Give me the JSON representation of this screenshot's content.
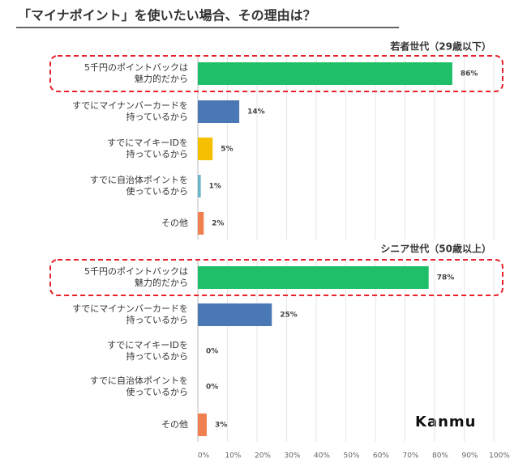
{
  "title": "「マイナポイント」を使いたい場合、その理由は？",
  "logo": "Kanmu",
  "chart_data": [
    {
      "type": "bar",
      "title": "若者世代（29歳以下）",
      "categories": [
        "5千円のポイントバックは\n魅力的だから",
        "すでにマイナンバーカードを\n持っているから",
        "すでにマイキーIDを\n持っているから",
        "すでに自治体ポイントを\n使っているから",
        "その他"
      ],
      "values": [
        86,
        14,
        5,
        1,
        2
      ],
      "value_labels": [
        "86%",
        "14%",
        "5%",
        "1%",
        "2%"
      ],
      "colors": [
        "#1fbf6a",
        "#4a78b5",
        "#f5c000",
        "#6ab5c8",
        "#f08050"
      ],
      "highlight_index": 0,
      "xlim": [
        0,
        100
      ],
      "xticks": [
        {
          "value": 0,
          "label": "0%"
        },
        {
          "value": 10,
          "label": "10%"
        },
        {
          "value": 20,
          "label": "20%"
        },
        {
          "value": 30,
          "label": "30%"
        },
        {
          "value": 40,
          "label": "40%"
        },
        {
          "value": 50,
          "label": "50%"
        },
        {
          "value": 60,
          "label": "60%"
        },
        {
          "value": 70,
          "label": "70%"
        },
        {
          "value": 80,
          "label": "80%"
        },
        {
          "value": 90,
          "label": "90%"
        },
        {
          "value": 100,
          "label": "100%"
        }
      ],
      "grid": true
    },
    {
      "type": "bar",
      "title": "シニア世代（50歳以上）",
      "categories": [
        "5千円のポイントバックは\n魅力的だから",
        "すでにマイナンバーカードを\n持っているから",
        "すでにマイキーIDを\n持っているから",
        "すでに自治体ポイントを\n使っているから",
        "その他"
      ],
      "values": [
        78,
        25,
        0,
        0,
        3
      ],
      "value_labels": [
        "78%",
        "25%",
        "0%",
        "0%",
        "3%"
      ],
      "colors": [
        "#1fbf6a",
        "#4a78b5",
        "#f5c000",
        "#6ab5c8",
        "#f08050"
      ],
      "highlight_index": 0,
      "xlim": [
        0,
        100
      ],
      "xticks": [
        {
          "value": 0,
          "label": "0%"
        },
        {
          "value": 10,
          "label": "10%"
        },
        {
          "value": 20,
          "label": "20%"
        },
        {
          "value": 30,
          "label": "30%"
        },
        {
          "value": 40,
          "label": "40%"
        },
        {
          "value": 50,
          "label": "50%"
        },
        {
          "value": 60,
          "label": "60%"
        },
        {
          "value": 70,
          "label": "70%"
        },
        {
          "value": 80,
          "label": "80%"
        },
        {
          "value": 90,
          "label": "90%"
        },
        {
          "value": 100,
          "label": "100%"
        }
      ],
      "grid": true
    }
  ]
}
